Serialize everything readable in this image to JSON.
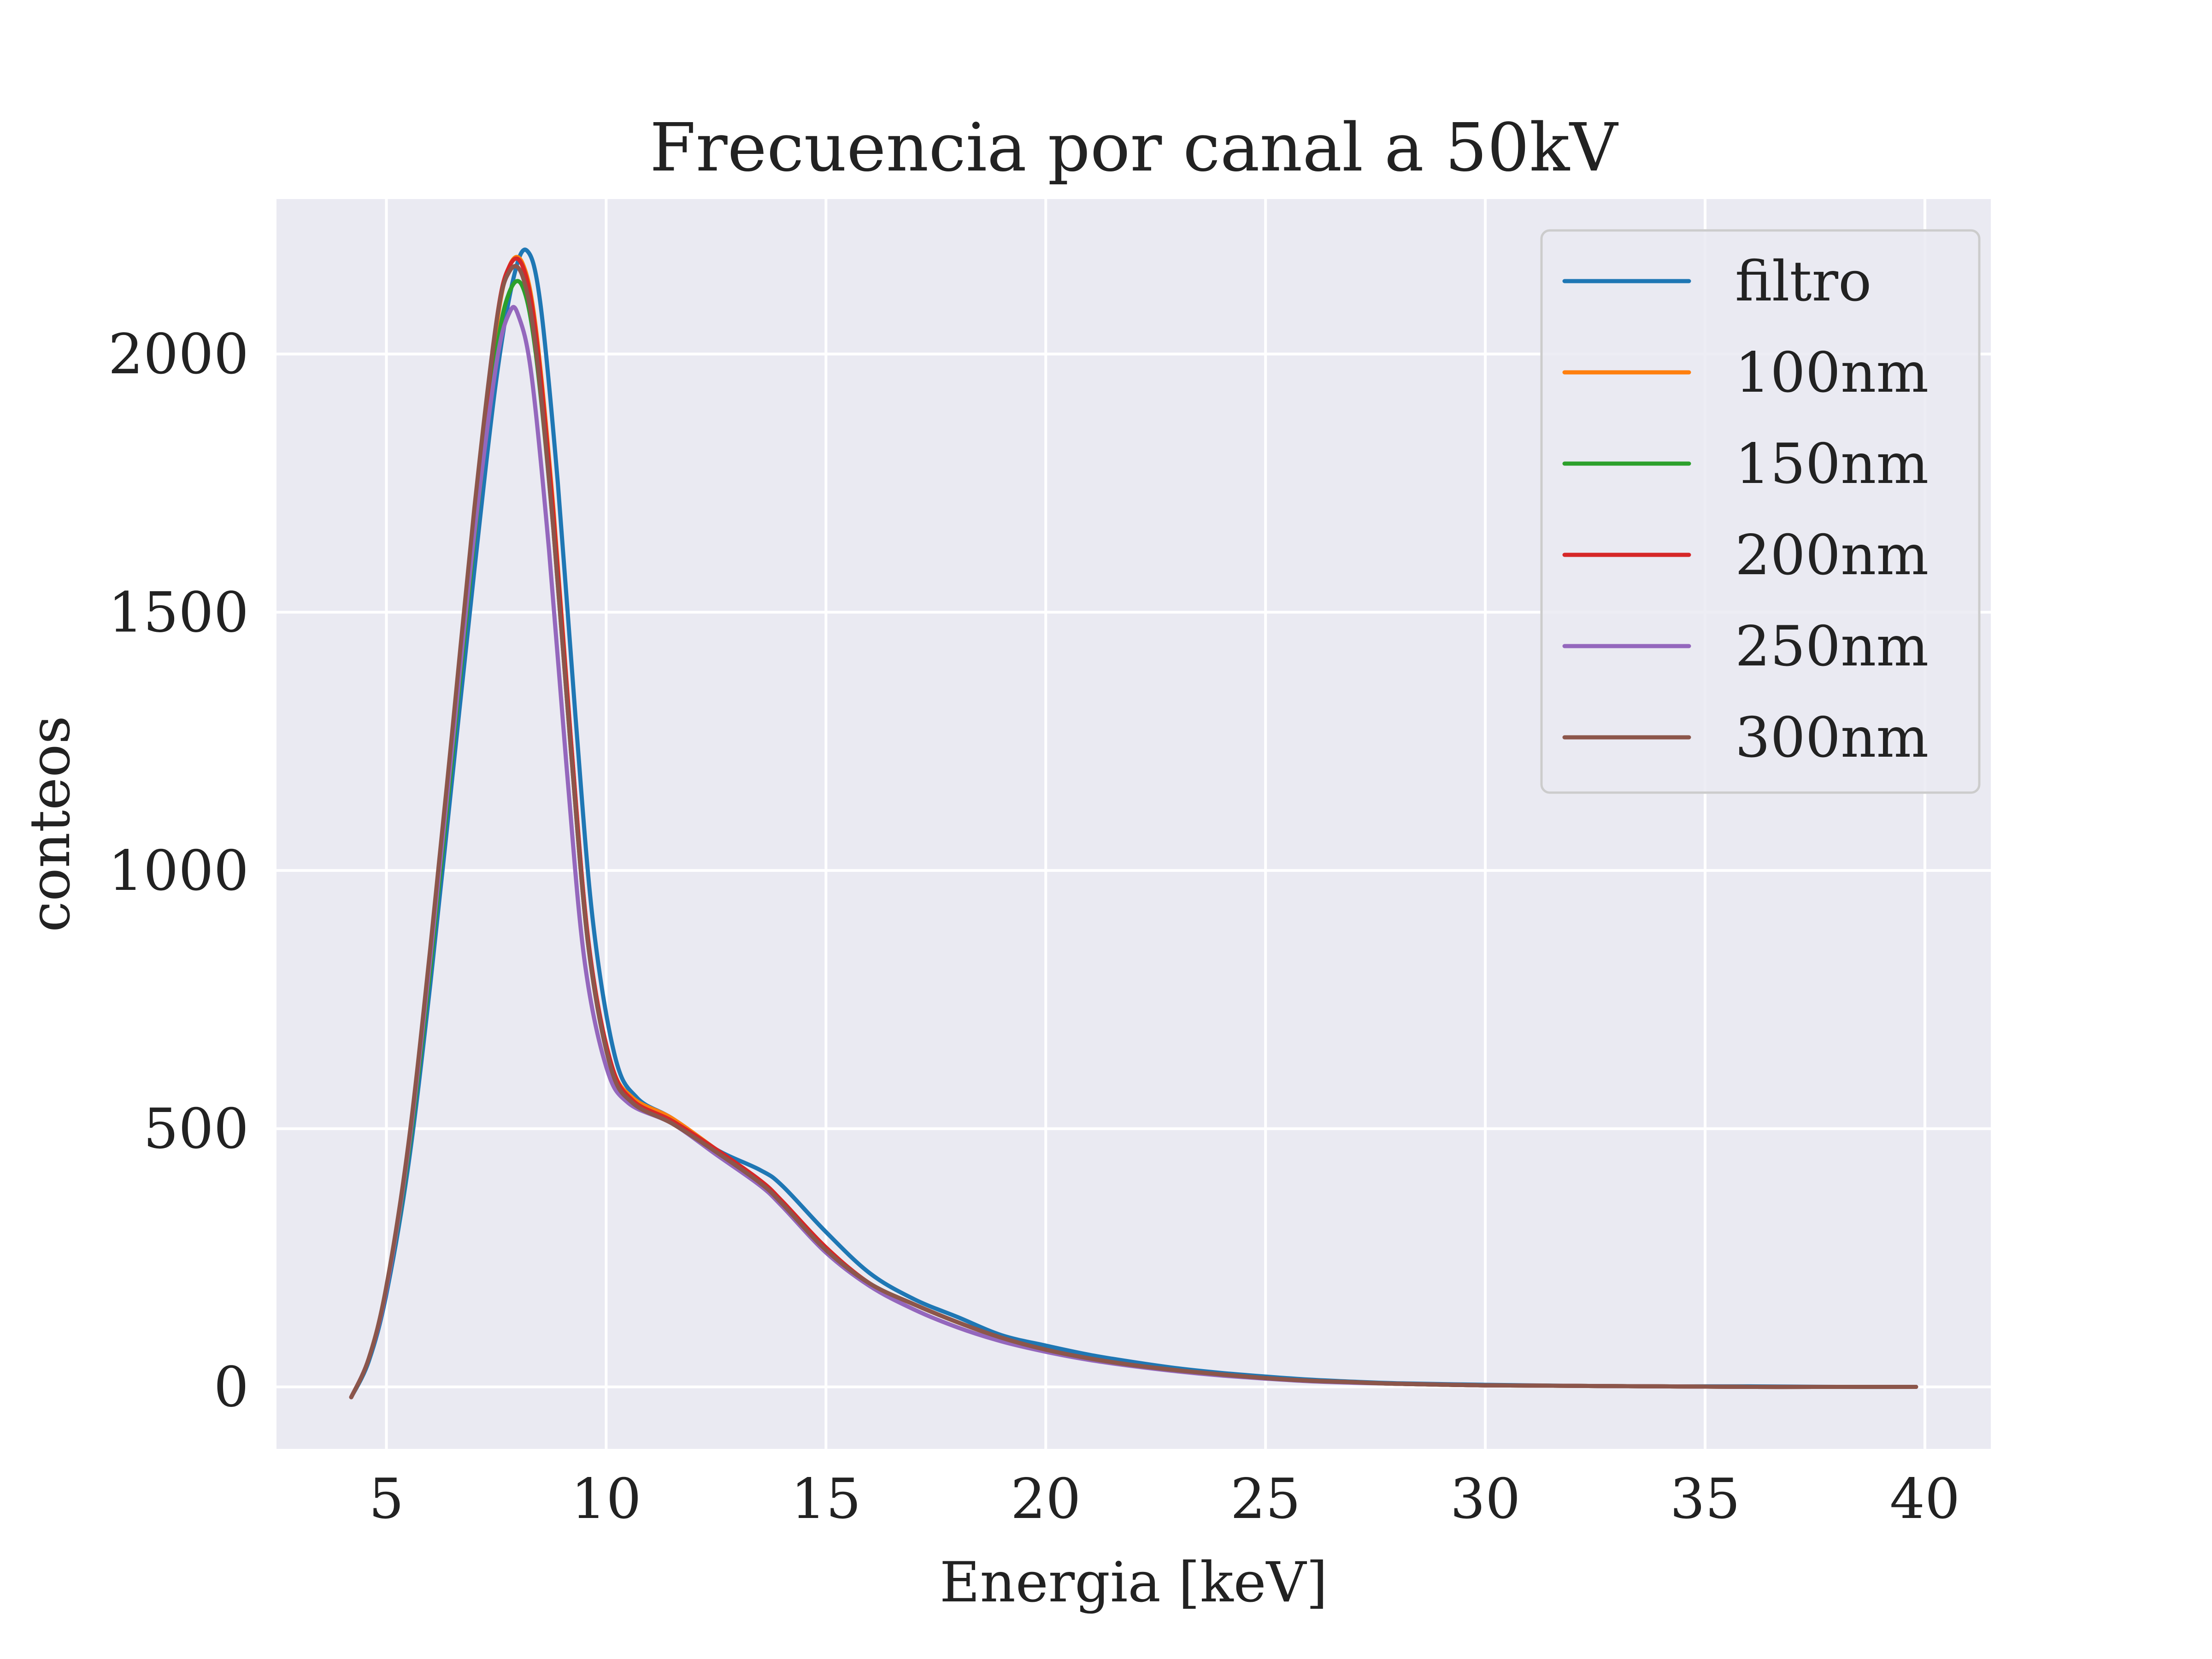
{
  "chart_data": {
    "type": "line",
    "title": "Frecuencia por canal a 50kV",
    "xlabel": "Energia [keV]",
    "ylabel": "conteos",
    "xlim": [
      2.5,
      41.5
    ],
    "ylim": [
      -120,
      2300
    ],
    "x_ticks": [
      5,
      10,
      15,
      20,
      25,
      30,
      35,
      40
    ],
    "y_ticks": [
      0,
      500,
      1000,
      1500,
      2000
    ],
    "grid": true,
    "legend_position": "top-right",
    "series": [
      {
        "name": "filtro",
        "color": "#1f77b4",
        "x": [
          4.2,
          4.6,
          5.0,
          5.5,
          6.0,
          6.5,
          7.0,
          7.5,
          7.9,
          8.2,
          8.5,
          8.9,
          9.3,
          9.7,
          10.2,
          10.7,
          11.5,
          12.5,
          13.5,
          14.0,
          15.0,
          16.0,
          17.0,
          18.0,
          19.0,
          20.0,
          21.0,
          22.0,
          23.0,
          24.0,
          25.0,
          26.0,
          27.0,
          28.0,
          30.0,
          32.0,
          34.0,
          36.0,
          38.0,
          39.8
        ],
        "y": [
          -20,
          50,
          180,
          430,
          780,
          1180,
          1580,
          1950,
          2150,
          2200,
          2100,
          1750,
          1300,
          900,
          640,
          560,
          520,
          460,
          420,
          390,
          300,
          220,
          170,
          135,
          100,
          80,
          62,
          48,
          36,
          27,
          20,
          14,
          10,
          7,
          4,
          2,
          1,
          1,
          0,
          0
        ]
      },
      {
        "name": "100nm",
        "color": "#ff7f0e",
        "x": [
          4.2,
          4.6,
          5.0,
          5.5,
          6.0,
          6.5,
          7.0,
          7.5,
          7.8,
          8.1,
          8.4,
          8.8,
          9.2,
          9.6,
          10.1,
          10.6,
          11.5,
          12.5,
          13.5,
          14.0,
          15.0,
          16.0,
          17.0,
          18.0,
          19.0,
          20.0,
          21.0,
          22.0,
          23.0,
          24.0,
          25.0,
          26.0,
          27.0,
          28.0,
          30.0,
          32.0,
          34.0,
          36.0,
          38.0,
          39.8
        ],
        "y": [
          -20,
          55,
          190,
          460,
          830,
          1250,
          1680,
          2050,
          2170,
          2175,
          2050,
          1700,
          1250,
          860,
          630,
          560,
          520,
          460,
          400,
          360,
          270,
          200,
          160,
          125,
          95,
          72,
          55,
          42,
          32,
          24,
          17,
          12,
          9,
          6,
          3,
          2,
          1,
          0,
          0,
          0
        ]
      },
      {
        "name": "150nm",
        "color": "#2ca02c",
        "x": [
          4.2,
          4.6,
          5.0,
          5.5,
          6.0,
          6.5,
          7.0,
          7.5,
          7.8,
          8.1,
          8.4,
          8.8,
          9.2,
          9.6,
          10.1,
          10.6,
          11.5,
          12.5,
          13.5,
          14.0,
          15.0,
          16.0,
          17.0,
          18.0,
          19.0,
          20.0,
          21.0,
          22.0,
          23.0,
          24.0,
          25.0,
          26.0,
          27.0,
          28.0,
          30.0,
          32.0,
          34.0,
          36.0,
          38.0,
          39.8
        ],
        "y": [
          -20,
          55,
          190,
          450,
          810,
          1220,
          1640,
          2000,
          2120,
          2130,
          2000,
          1660,
          1230,
          850,
          620,
          550,
          515,
          455,
          395,
          355,
          265,
          200,
          160,
          125,
          95,
          72,
          55,
          42,
          32,
          24,
          17,
          12,
          9,
          6,
          3,
          2,
          1,
          0,
          0,
          0
        ]
      },
      {
        "name": "200nm",
        "color": "#d62728",
        "x": [
          4.2,
          4.6,
          5.0,
          5.5,
          6.0,
          6.5,
          7.0,
          7.5,
          7.8,
          8.1,
          8.4,
          8.8,
          9.2,
          9.6,
          10.1,
          10.6,
          11.5,
          12.5,
          13.5,
          14.0,
          15.0,
          16.0,
          17.0,
          18.0,
          19.0,
          20.0,
          21.0,
          22.0,
          23.0,
          24.0,
          25.0,
          26.0,
          27.0,
          28.0,
          30.0,
          32.0,
          34.0,
          36.0,
          38.0,
          39.8
        ],
        "y": [
          -20,
          55,
          190,
          460,
          830,
          1250,
          1680,
          2060,
          2170,
          2170,
          2040,
          1690,
          1250,
          860,
          630,
          555,
          515,
          460,
          400,
          360,
          270,
          200,
          160,
          125,
          95,
          72,
          55,
          42,
          32,
          24,
          17,
          12,
          9,
          6,
          3,
          2,
          1,
          0,
          0,
          0
        ]
      },
      {
        "name": "250nm",
        "color": "#9467bd",
        "x": [
          4.2,
          4.6,
          5.0,
          5.5,
          6.0,
          6.5,
          7.0,
          7.5,
          7.8,
          8.0,
          8.3,
          8.7,
          9.1,
          9.5,
          10.0,
          10.5,
          11.5,
          12.5,
          13.5,
          14.0,
          15.0,
          16.0,
          17.0,
          18.0,
          19.0,
          20.0,
          21.0,
          22.0,
          23.0,
          24.0,
          25.0,
          26.0,
          27.0,
          28.0,
          30.0,
          32.0,
          34.0,
          36.0,
          38.0,
          39.8
        ],
        "y": [
          -20,
          55,
          190,
          460,
          830,
          1240,
          1650,
          1980,
          2080,
          2075,
          1960,
          1620,
          1200,
          830,
          620,
          550,
          510,
          450,
          390,
          350,
          260,
          195,
          150,
          115,
          88,
          68,
          52,
          40,
          30,
          22,
          16,
          11,
          8,
          6,
          3,
          2,
          1,
          0,
          0,
          0
        ]
      },
      {
        "name": "300nm",
        "color": "#8c564b",
        "x": [
          4.2,
          4.6,
          5.0,
          5.5,
          6.0,
          6.5,
          7.0,
          7.5,
          7.8,
          8.1,
          8.4,
          8.8,
          9.2,
          9.6,
          10.1,
          10.6,
          11.5,
          12.5,
          13.5,
          14.0,
          15.0,
          16.0,
          17.0,
          18.0,
          19.0,
          20.0,
          21.0,
          22.0,
          23.0,
          24.0,
          25.0,
          26.0,
          27.0,
          28.0,
          30.0,
          32.0,
          34.0,
          36.0,
          38.0,
          39.8
        ],
        "y": [
          -20,
          55,
          195,
          470,
          850,
          1270,
          1700,
          2060,
          2160,
          2150,
          2010,
          1660,
          1230,
          850,
          620,
          550,
          510,
          455,
          395,
          355,
          265,
          200,
          160,
          125,
          95,
          72,
          55,
          42,
          32,
          24,
          17,
          12,
          9,
          6,
          3,
          2,
          1,
          0,
          0,
          0
        ]
      }
    ]
  }
}
